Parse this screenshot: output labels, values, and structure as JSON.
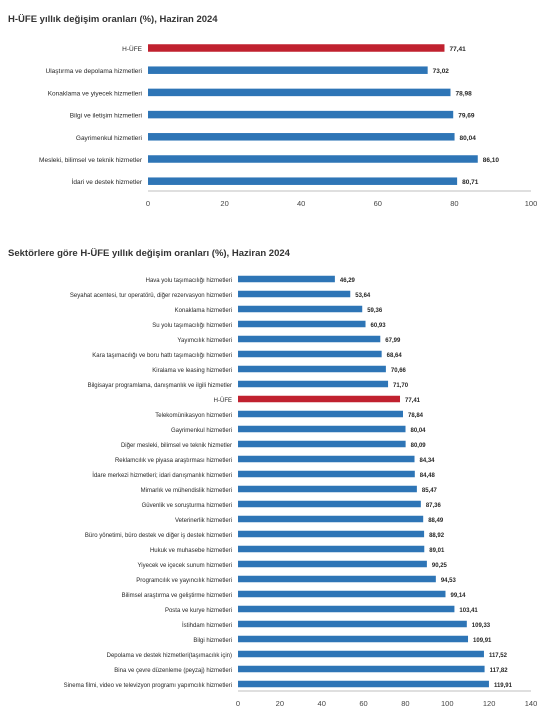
{
  "colors": {
    "bar": "#2e75b6",
    "highlight": "#c0212f",
    "axis": "#bfbfbf",
    "text": "#262626"
  },
  "chart_data": [
    {
      "type": "bar",
      "orientation": "horizontal",
      "title": "H-ÜFE yıllık değişim oranları (%), Haziran 2024",
      "xlim": [
        0,
        100
      ],
      "xticks": [
        "0",
        "20",
        "40",
        "60",
        "80",
        "100"
      ],
      "grid": false,
      "highlight_index": 0,
      "categories": [
        "H-ÜFE",
        "Ulaştırma ve depolama hizmetleri",
        "Konaklama ve yiyecek hizmetleri",
        "Bilgi ve iletişim hizmetleri",
        "Gayrimenkul hizmetleri",
        "Mesleki, bilimsel ve teknik hizmetler",
        "İdari ve destek hizmetler"
      ],
      "values": [
        77.41,
        73.02,
        78.98,
        79.69,
        80.04,
        86.1,
        80.71
      ],
      "value_labels": [
        "77,41",
        "73,02",
        "78,98",
        "79,69",
        "80,04",
        "86,10",
        "80,71"
      ]
    },
    {
      "type": "bar",
      "orientation": "horizontal",
      "title": "Sektörlere göre H-ÜFE yıllık değişim oranları (%), Haziran 2024",
      "xlim": [
        0,
        140
      ],
      "xticks": [
        "0",
        "20",
        "40",
        "60",
        "80",
        "100",
        "120",
        "140"
      ],
      "grid": false,
      "highlight_index": 8,
      "categories": [
        "Hava yolu taşımacılığı hizmetleri",
        "Seyahat acentesi, tur operatörü, diğer rezervasyon hizmetleri",
        "Konaklama hizmetleri",
        "Su yolu taşımacılığı hizmetleri",
        "Yayımcılık hizmetleri",
        "Kara taşımacılığı ve boru hattı taşımacılığı hizmetleri",
        "Kiralama ve leasing hizmetleri",
        "Bilgisayar programlama, danışmanlık ve ilgili hizmetler",
        "H-ÜFE",
        "Telekomünikasyon hizmetleri",
        "Gayrimenkul hizmetleri",
        "Diğer mesleki, bilimsel ve teknik hizmetler",
        "Reklamcılık ve piyasa araştırması hizmetleri",
        "İdare merkezi hizmetleri; idari danışmanlık hizmetleri",
        "Mimarlık ve mühendislik hizmetleri",
        "Güvenlik ve soruşturma hizmetleri",
        "Veterinerlik hizmetleri",
        "Büro yönetimi, büro destek ve diğer iş destek hizmetleri",
        "Hukuk ve muhasebe hizmetleri",
        "Yiyecek ve içecek sunum hizmetleri",
        "Programcılık ve yayıncılık hizmetleri",
        "Bilimsel araştırma ve geliştirme hizmetleri",
        "Posta ve kurye hizmetleri",
        "İstihdam hizmetleri",
        "Bilgi hizmetleri",
        "Depolama ve destek hizmetleri(taşımacılık için)",
        "Bina ve çevre düzenleme (peyzaj) hizmetleri",
        "Sinema filmi, video ve televizyon programı yapımcılık hizmetleri"
      ],
      "values": [
        46.29,
        53.64,
        59.36,
        60.93,
        67.99,
        68.64,
        70.66,
        71.7,
        77.41,
        78.84,
        80.04,
        80.09,
        84.34,
        84.48,
        85.47,
        87.36,
        88.49,
        88.92,
        89.01,
        90.25,
        94.53,
        99.14,
        103.41,
        109.33,
        109.91,
        117.52,
        117.82,
        119.91
      ],
      "value_labels": [
        "46,29",
        "53,64",
        "59,36",
        "60,93",
        "67,99",
        "68,64",
        "70,66",
        "71,70",
        "77,41",
        "78,84",
        "80,04",
        "80,09",
        "84,34",
        "84,48",
        "85,47",
        "87,36",
        "88,49",
        "88,92",
        "89,01",
        "90,25",
        "94,53",
        "99,14",
        "103,41",
        "109,33",
        "109,91",
        "117,52",
        "117,82",
        "119,91"
      ]
    }
  ]
}
